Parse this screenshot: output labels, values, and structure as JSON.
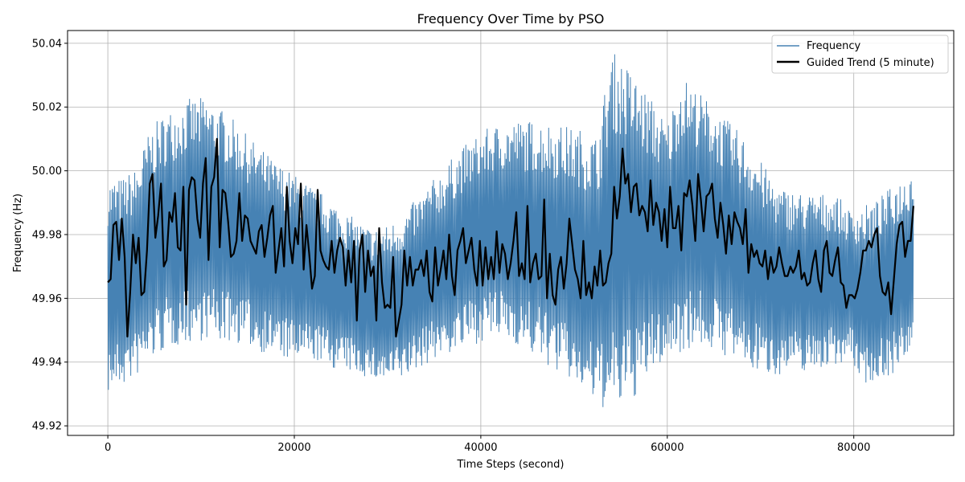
{
  "chart_data": {
    "type": "line",
    "title": "Frequency Over Time by PSO",
    "xlabel": "Time Steps (second)",
    "ylabel": "Frequency (Hz)",
    "xlim": [
      -4320,
      90720
    ],
    "ylim": [
      49.917,
      50.044
    ],
    "xticks": [
      0,
      20000,
      40000,
      60000,
      80000
    ],
    "yticks": [
      49.92,
      49.94,
      49.96,
      49.98,
      50.0,
      50.02,
      50.04
    ],
    "xtick_labels": [
      "0",
      "20000",
      "40000",
      "60000",
      "80000"
    ],
    "ytick_labels": [
      "49.92",
      "49.94",
      "49.96",
      "49.98",
      "50.00",
      "50.02",
      "50.04"
    ],
    "grid": true,
    "legend_position": "top-right",
    "series": [
      {
        "name": "Frequency",
        "color": "#4682b4",
        "style": "oscillating envelope",
        "x": [
          0,
          1500,
          3000,
          4500,
          6000,
          7500,
          9000,
          10500,
          12000,
          13500,
          15000,
          16500,
          18000,
          19500,
          21000,
          22500,
          24000,
          25500,
          27000,
          28500,
          30000,
          31500,
          33000,
          34500,
          36000,
          37500,
          39000,
          40500,
          42000,
          43500,
          45000,
          46500,
          48000,
          49500,
          51000,
          52500,
          54000,
          55500,
          57000,
          58500,
          60000,
          61500,
          63000,
          64500,
          66000,
          67500,
          69000,
          70500,
          72000,
          73500,
          75000,
          76500,
          78000,
          79500,
          81000,
          82500,
          84000,
          85500,
          86400
        ],
        "upper": [
          49.998,
          49.998,
          50.001,
          50.013,
          50.018,
          50.021,
          50.023,
          50.023,
          50.02,
          50.016,
          50.011,
          50.007,
          50.003,
          50.0,
          49.997,
          49.994,
          49.991,
          49.987,
          49.984,
          49.982,
          49.983,
          49.986,
          49.991,
          49.996,
          50.001,
          50.006,
          50.01,
          50.013,
          50.015,
          50.016,
          50.016,
          50.016,
          50.015,
          50.014,
          50.013,
          50.011,
          50.038,
          50.034,
          50.028,
          50.022,
          50.015,
          50.03,
          50.026,
          50.022,
          50.017,
          50.013,
          50.008,
          50.001,
          49.995,
          49.994,
          49.993,
          49.993,
          49.993,
          49.988,
          49.989,
          49.991,
          49.995,
          49.999,
          50.003
        ],
        "lower": [
          49.93,
          49.932,
          49.935,
          49.94,
          49.943,
          49.945,
          49.946,
          49.947,
          49.946,
          49.946,
          49.945,
          49.943,
          49.942,
          49.94,
          49.94,
          49.94,
          49.938,
          49.937,
          49.936,
          49.934,
          49.933,
          49.934,
          49.937,
          49.94,
          49.942,
          49.943,
          49.945,
          49.947,
          49.947,
          49.946,
          49.943,
          49.94,
          49.937,
          49.934,
          49.93,
          49.926,
          49.924,
          49.926,
          49.93,
          49.937,
          49.941,
          49.943,
          49.945,
          49.944,
          49.942,
          49.94,
          49.937,
          49.936,
          49.936,
          49.937,
          49.937,
          49.938,
          49.939,
          49.941,
          49.933,
          49.934,
          49.936,
          49.938,
          49.94
        ]
      },
      {
        "name": "Guided Trend (5 minute)",
        "color": "#000000",
        "x": [
          0,
          300,
          600,
          900,
          1200,
          1500,
          1800,
          2100,
          2400,
          2700,
          3000,
          3300,
          3600,
          3900,
          4200,
          4500,
          4800,
          5100,
          5400,
          5700,
          6000,
          6300,
          6600,
          6900,
          7200,
          7500,
          7800,
          8100,
          8400,
          8700,
          9000,
          9300,
          9600,
          9900,
          10200,
          10500,
          10800,
          11100,
          11400,
          11700,
          12000,
          12300,
          12600,
          12900,
          13200,
          13500,
          13800,
          14100,
          14400,
          14700,
          15000,
          15300,
          15600,
          15900,
          16200,
          16500,
          16800,
          17100,
          17400,
          17700,
          18000,
          18300,
          18600,
          18900,
          19200,
          19500,
          19800,
          20100,
          20400,
          20700,
          21000,
          21300,
          21600,
          21900,
          22200,
          22500,
          22800,
          23100,
          23400,
          23700,
          24000,
          24300,
          24600,
          24900,
          25200,
          25500,
          25800,
          26100,
          26400,
          26700,
          27000,
          27300,
          27600,
          27900,
          28200,
          28500,
          28800,
          29100,
          29400,
          29700,
          30000,
          30300,
          30600,
          30900,
          31200,
          31500,
          31800,
          32100,
          32400,
          32700,
          33000,
          33300,
          33600,
          33900,
          34200,
          34500,
          34800,
          35100,
          35400,
          35700,
          36000,
          36300,
          36600,
          36900,
          37200,
          37500,
          37800,
          38100,
          38400,
          38700,
          39000,
          39300,
          39600,
          39900,
          40200,
          40500,
          40800,
          41100,
          41400,
          41700,
          42000,
          42300,
          42600,
          42900,
          43200,
          43500,
          43800,
          44100,
          44400,
          44700,
          45000,
          45300,
          45600,
          45900,
          46200,
          46500,
          46800,
          47100,
          47400,
          47700,
          48000,
          48300,
          48600,
          48900,
          49200,
          49500,
          49800,
          50100,
          50400,
          50700,
          51000,
          51300,
          51600,
          51900,
          52200,
          52500,
          52800,
          53100,
          53400,
          53700,
          54000,
          54300,
          54600,
          54900,
          55200,
          55500,
          55800,
          56100,
          56400,
          56700,
          57000,
          57300,
          57600,
          57900,
          58200,
          58500,
          58800,
          59100,
          59400,
          59700,
          60000,
          60300,
          60600,
          60900,
          61200,
          61500,
          61800,
          62100,
          62400,
          62700,
          63000,
          63300,
          63600,
          63900,
          64200,
          64500,
          64800,
          65100,
          65400,
          65700,
          66000,
          66300,
          66600,
          66900,
          67200,
          67500,
          67800,
          68100,
          68400,
          68700,
          69000,
          69300,
          69600,
          69900,
          70200,
          70500,
          70800,
          71100,
          71400,
          71700,
          72000,
          72300,
          72600,
          72900,
          73200,
          73500,
          73800,
          74100,
          74400,
          74700,
          75000,
          75300,
          75600,
          75900,
          76200,
          76500,
          76800,
          77100,
          77400,
          77700,
          78000,
          78300,
          78600,
          78900,
          79200,
          79500,
          79800,
          80100,
          80400,
          80700,
          81000,
          81300,
          81600,
          81900,
          82200,
          82500,
          82800,
          83100,
          83400,
          83700,
          84000,
          84300,
          84600,
          84900,
          85200,
          85500,
          85800,
          86100,
          86400
        ],
        "y": [
          49.965,
          49.966,
          49.983,
          49.984,
          49.972,
          49.985,
          49.973,
          49.948,
          49.962,
          49.98,
          49.971,
          49.979,
          49.961,
          49.962,
          49.975,
          49.996,
          49.999,
          49.979,
          49.986,
          49.996,
          49.97,
          49.972,
          49.987,
          49.984,
          49.993,
          49.976,
          49.975,
          49.995,
          49.958,
          49.994,
          49.998,
          49.997,
          49.985,
          49.979,
          49.996,
          50.004,
          49.972,
          49.995,
          49.998,
          50.01,
          49.976,
          49.994,
          49.993,
          49.984,
          49.973,
          49.974,
          49.978,
          49.993,
          49.978,
          49.986,
          49.985,
          49.978,
          49.976,
          49.974,
          49.981,
          49.983,
          49.973,
          49.979,
          49.986,
          49.989,
          49.968,
          49.975,
          49.982,
          49.97,
          49.995,
          49.978,
          49.971,
          49.982,
          49.977,
          49.996,
          49.969,
          49.983,
          49.974,
          49.963,
          49.967,
          49.994,
          49.975,
          49.972,
          49.97,
          49.969,
          49.978,
          49.968,
          49.975,
          49.979,
          49.976,
          49.964,
          49.975,
          49.965,
          49.978,
          49.953,
          49.975,
          49.98,
          49.962,
          49.975,
          49.967,
          49.97,
          49.953,
          49.982,
          49.965,
          49.957,
          49.958,
          49.957,
          49.973,
          49.948,
          49.953,
          49.958,
          49.975,
          49.964,
          49.973,
          49.964,
          49.969,
          49.969,
          49.972,
          49.967,
          49.975,
          49.962,
          49.959,
          49.976,
          49.964,
          49.969,
          49.975,
          49.966,
          49.98,
          49.967,
          49.961,
          49.975,
          49.978,
          49.982,
          49.971,
          49.975,
          49.979,
          49.969,
          49.964,
          49.978,
          49.964,
          49.976,
          49.966,
          49.973,
          49.966,
          49.981,
          49.968,
          49.977,
          49.974,
          49.966,
          49.971,
          49.978,
          49.987,
          49.967,
          49.971,
          49.966,
          49.989,
          49.965,
          49.971,
          49.974,
          49.966,
          49.967,
          49.991,
          49.96,
          49.974,
          49.961,
          49.958,
          49.969,
          49.973,
          49.963,
          49.971,
          49.985,
          49.977,
          49.969,
          49.966,
          49.96,
          49.978,
          49.961,
          49.965,
          49.96,
          49.97,
          49.964,
          49.975,
          49.964,
          49.965,
          49.971,
          49.974,
          49.995,
          49.985,
          49.992,
          50.007,
          49.996,
          49.999,
          49.987,
          49.995,
          49.996,
          49.986,
          49.989,
          49.987,
          49.981,
          49.997,
          49.983,
          49.99,
          49.987,
          49.978,
          49.988,
          49.976,
          49.995,
          49.982,
          49.982,
          49.989,
          49.975,
          49.993,
          49.992,
          49.997,
          49.989,
          49.978,
          49.999,
          49.991,
          49.981,
          49.992,
          49.993,
          49.996,
          49.985,
          49.979,
          49.99,
          49.983,
          49.974,
          49.986,
          49.977,
          49.987,
          49.984,
          49.982,
          49.977,
          49.988,
          49.968,
          49.977,
          49.973,
          49.975,
          49.971,
          49.97,
          49.975,
          49.966,
          49.973,
          49.968,
          49.97,
          49.976,
          49.971,
          49.967,
          49.967,
          49.97,
          49.968,
          49.97,
          49.975,
          49.966,
          49.968,
          49.964,
          49.965,
          49.971,
          49.975,
          49.966,
          49.962,
          49.975,
          49.978,
          49.968,
          49.967,
          49.972,
          49.976,
          49.965,
          49.964,
          49.957,
          49.961,
          49.961,
          49.96,
          49.963,
          49.968,
          49.975,
          49.975,
          49.978,
          49.976,
          49.98,
          49.982,
          49.967,
          49.962,
          49.961,
          49.965,
          49.955,
          49.966,
          49.977,
          49.983,
          49.984,
          49.973,
          49.978,
          49.978,
          49.989
        ]
      }
    ]
  }
}
